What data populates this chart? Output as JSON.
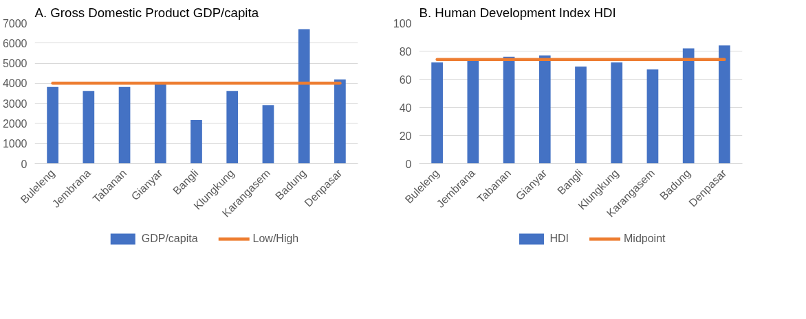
{
  "chart_data": [
    {
      "type": "bar",
      "title": "A. Gross Domestic Product GDP/capita",
      "categories": [
        "Buleleng",
        "Jembrana",
        "Tabanan",
        "Gianyar",
        "Bangli",
        "Klungkung",
        "Karangasem",
        "Badung",
        "Denpasar"
      ],
      "series": [
        {
          "name": "GDP/capita",
          "color": "#4472c4",
          "values": [
            3820,
            3610,
            3820,
            3960,
            2170,
            3610,
            2910,
            6690,
            4190
          ]
        },
        {
          "name": "Low/High",
          "type": "line",
          "color": "#ed7d31",
          "values": [
            4000,
            4000,
            4000,
            4000,
            4000,
            4000,
            4000,
            4000,
            4000
          ]
        }
      ],
      "ylim": [
        0,
        7000
      ],
      "yticks": [
        0,
        1000,
        2000,
        3000,
        4000,
        5000,
        6000,
        7000
      ],
      "grid": "y",
      "legend": "bottom"
    },
    {
      "type": "bar",
      "title": "B. Human Development Index HDI",
      "categories": [
        "Buleleng",
        "Jembrana",
        "Tabanan",
        "Gianyar",
        "Bangli",
        "Klungkung",
        "Karangasem",
        "Badung",
        "Denpasar"
      ],
      "series": [
        {
          "name": "HDI",
          "color": "#4472c4",
          "values": [
            72,
            73,
            76,
            77,
            69,
            72,
            67,
            82,
            84
          ]
        },
        {
          "name": "Midpoint",
          "type": "line",
          "color": "#ed7d31",
          "values": [
            74,
            74,
            74,
            74,
            74,
            74,
            74,
            74,
            74
          ]
        }
      ],
      "ylim": [
        0,
        100
      ],
      "yticks": [
        0,
        20,
        40,
        60,
        80,
        100
      ],
      "grid": "y",
      "legend": "bottom"
    }
  ]
}
